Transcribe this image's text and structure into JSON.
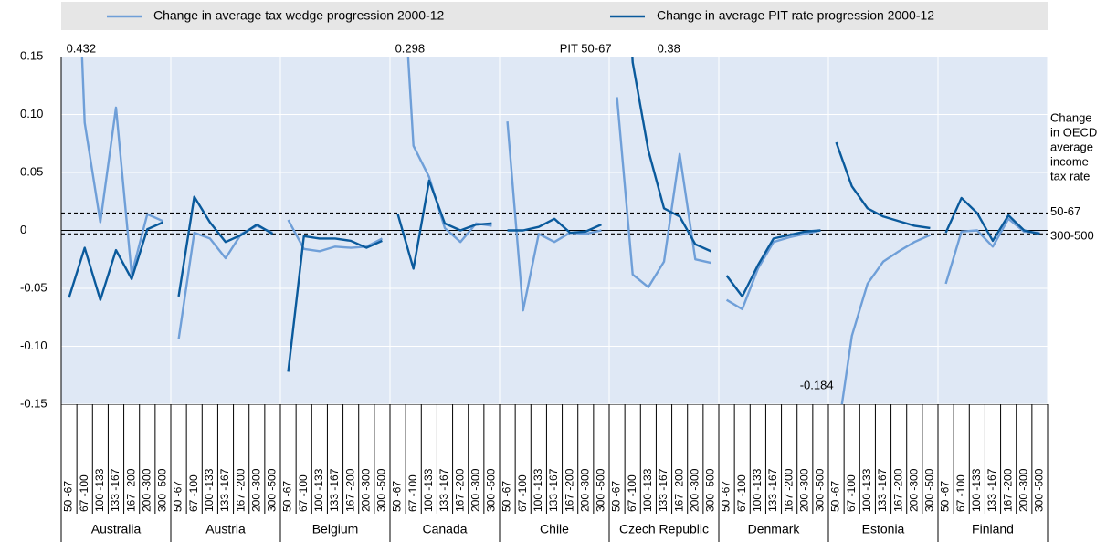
{
  "chart_data": {
    "type": "line",
    "legend": "top",
    "groups": [
      "Australia",
      "Austria",
      "Belgium",
      "Canada",
      "Chile",
      "Czech Republic",
      "Denmark",
      "Estonia",
      "Finland"
    ],
    "categories": [
      "50 -67",
      "67 -100",
      "100 -133",
      "133 -167",
      "167 -200",
      "200 -300",
      "300 -500",
      "50 -67",
      "67 -100",
      "100 -133",
      "133 -167",
      "167 -200",
      "200 -300",
      "300 -500",
      "50 -67",
      "67 -100",
      "100 -133",
      "133 -167",
      "167 -200",
      "200 -300",
      "300 -500",
      "50 -67",
      "67 -100",
      "100 -133",
      "133 -167",
      "167 -200",
      "200 -300",
      "300 -500",
      "50 -67",
      "67 -100",
      "100 -133",
      "133 -167",
      "167 -200",
      "200 -300",
      "300 -500",
      "50 -67",
      "67 -100",
      "100 -133",
      "133 -167",
      "167 -200",
      "200 -300",
      "300 -500",
      "50 -67",
      "67 -100",
      "100 -133",
      "133 -167",
      "167 -200",
      "200 -300",
      "300 -500",
      "50 -67",
      "67 -100",
      "100 -133",
      "133 -167",
      "167 -200",
      "200 -300",
      "300 -500",
      "50 -67",
      "67 -100",
      "100 -133",
      "133 -167",
      "167 -200",
      "200 -300",
      "300 -500"
    ],
    "series": [
      {
        "name": "Change in average tax wedge progression 2000-12",
        "color": "#6f9fd8",
        "values": [
          0.432,
          0.093,
          0.007,
          0.106,
          -0.038,
          0.014,
          0.008,
          -0.094,
          -0.002,
          -0.007,
          -0.024,
          -0.003,
          0.004,
          -0.002,
          0.009,
          -0.016,
          -0.018,
          -0.014,
          -0.015,
          -0.014,
          -0.007,
          0.298,
          0.073,
          0.046,
          0.002,
          -0.01,
          0.006,
          0.004,
          0.094,
          -0.069,
          -0.003,
          -0.01,
          -0.002,
          -0.003,
          0.0,
          0.115,
          -0.038,
          -0.049,
          -0.027,
          0.066,
          -0.025,
          -0.028,
          -0.06,
          -0.068,
          -0.033,
          -0.01,
          -0.006,
          -0.003,
          0.0,
          -0.184,
          -0.091,
          -0.046,
          -0.027,
          -0.018,
          -0.01,
          -0.004,
          -0.046,
          -0.001,
          0.0,
          -0.014,
          0.01,
          -0.001,
          -0.002
        ]
      },
      {
        "name": "Change in average PIT rate progression 2000-12",
        "color": "#0a5a9c",
        "values": [
          -0.058,
          -0.015,
          -0.06,
          -0.017,
          -0.042,
          0.001,
          0.007,
          -0.057,
          0.029,
          0.007,
          -0.01,
          -0.004,
          0.005,
          -0.003,
          -0.122,
          -0.005,
          -0.007,
          -0.007,
          -0.009,
          -0.015,
          -0.009,
          0.014,
          -0.033,
          0.043,
          0.006,
          0.0,
          0.005,
          0.006,
          0.0,
          0.0,
          0.003,
          0.01,
          -0.002,
          -0.001,
          0.005,
          0.38,
          0.145,
          0.069,
          0.019,
          0.012,
          -0.012,
          -0.018,
          -0.039,
          -0.057,
          -0.03,
          -0.007,
          -0.004,
          -0.001,
          0.0,
          0.076,
          0.038,
          0.019,
          0.012,
          0.008,
          0.004,
          0.002,
          -0.002,
          0.028,
          0.015,
          -0.009,
          0.013,
          0.0,
          -0.003
        ]
      }
    ],
    "annotation": "PIT 50-67",
    "reference_title": [
      "Change",
      "in OECD",
      "average",
      "income",
      "tax rate"
    ],
    "reference_lines": [
      {
        "label": "50-67",
        "value": 0.015
      },
      {
        "label": "300-500",
        "value": -0.003
      }
    ],
    "ylim": [
      -0.15,
      0.15
    ],
    "yticks": [
      0.15,
      {
        "value": 0.1,
        "label": "0.10"
      },
      0.05,
      0,
      -0.05,
      {
        "value": -0.1,
        "label": "-0.10"
      },
      -0.15
    ],
    "grid": true
  }
}
